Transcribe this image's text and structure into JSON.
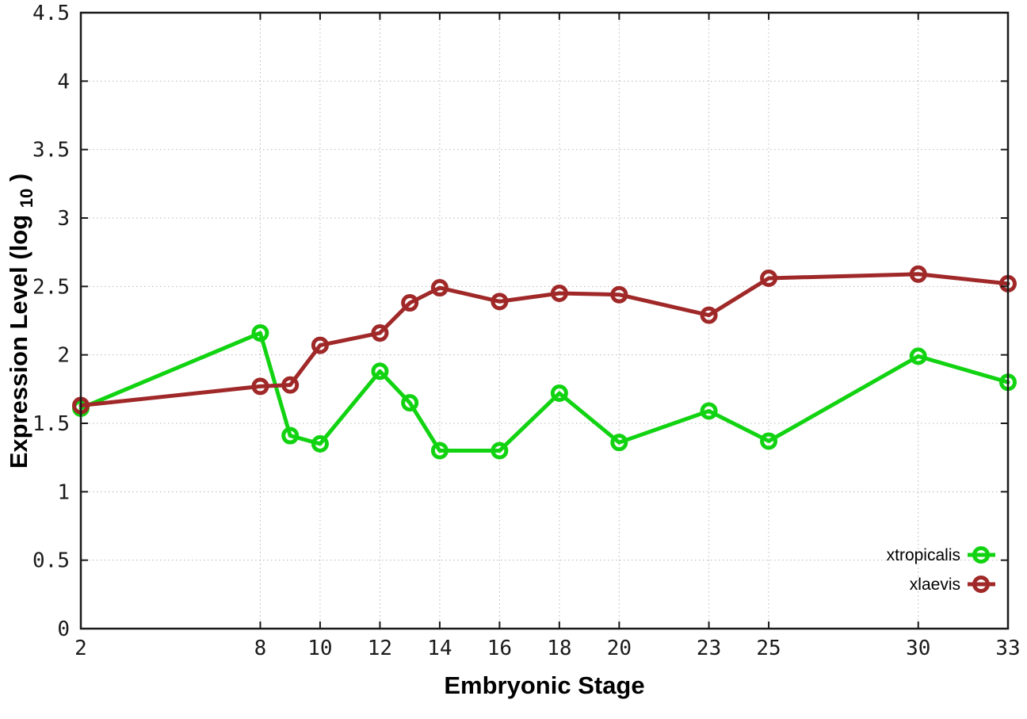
{
  "chart_data": {
    "type": "line",
    "title": "",
    "xlabel": "Embryonic Stage",
    "ylabel": "Expression Level (log10)",
    "ylabel_parts": {
      "main": "Expression Level (log",
      "sub": "10",
      "close": ")"
    },
    "xlim": [
      2,
      33
    ],
    "ylim": [
      0,
      4.5
    ],
    "x_ticks": [
      "2",
      "8",
      "10",
      "12",
      "14",
      "16",
      "18",
      "20",
      "23",
      "25",
      "30",
      "33"
    ],
    "y_ticks": [
      "0",
      "0.5",
      "1",
      "1.5",
      "2",
      "2.5",
      "3",
      "3.5",
      "4",
      "4.5"
    ],
    "grid": true,
    "legend_position": "bottom-right-inside",
    "axis_color": "#1a1a1a",
    "grid_color": "#b8b8b8",
    "series": [
      {
        "name": "xtropicalis",
        "color": "#12d312",
        "marker": "open-circle",
        "x": [
          2,
          8,
          9,
          10,
          12,
          13,
          14,
          16,
          18,
          20,
          23,
          25,
          30,
          33
        ],
        "y": [
          1.61,
          2.16,
          1.41,
          1.35,
          1.88,
          1.65,
          1.3,
          1.3,
          1.72,
          1.36,
          1.59,
          1.37,
          1.99,
          1.8
        ]
      },
      {
        "name": "xlaevis",
        "color": "#a02828",
        "marker": "open-circle",
        "x": [
          2,
          8,
          9,
          10,
          12,
          13,
          14,
          16,
          18,
          20,
          23,
          25,
          30,
          33
        ],
        "y": [
          1.63,
          1.77,
          1.78,
          2.07,
          2.16,
          2.38,
          2.49,
          2.39,
          2.45,
          2.44,
          2.29,
          2.56,
          2.59,
          2.52
        ]
      }
    ]
  }
}
